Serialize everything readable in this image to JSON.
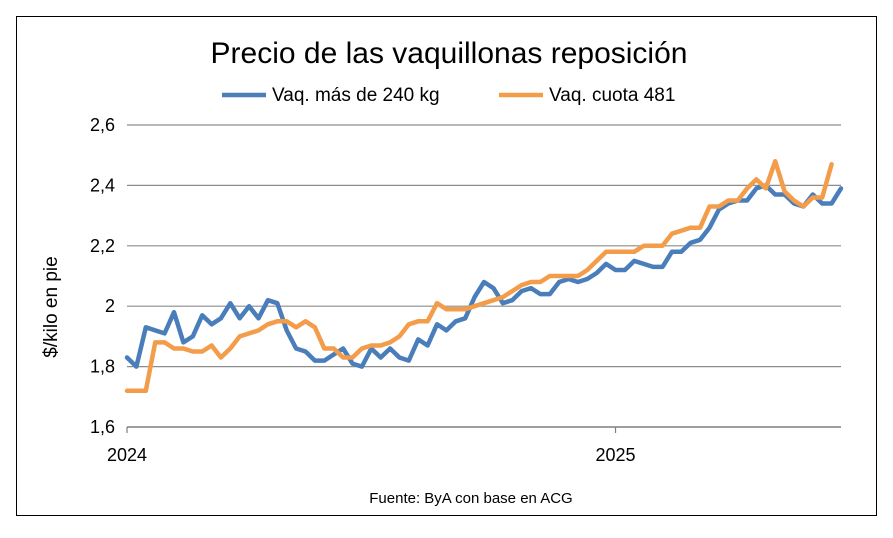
{
  "chart_data": {
    "type": "line",
    "title": "Precio de las vaquillonas reposición",
    "ylabel": "$/kilo en pie",
    "xlabel": "",
    "source": "Fuente: ByA con base en ACG",
    "ylim": [
      1.6,
      2.6
    ],
    "y_ticks": [
      {
        "value": 1.6,
        "label": "1,6"
      },
      {
        "value": 1.8,
        "label": "1,8"
      },
      {
        "value": 2.0,
        "label": "2"
      },
      {
        "value": 2.2,
        "label": "2,2"
      },
      {
        "value": 2.4,
        "label": "2,4"
      },
      {
        "value": 2.6,
        "label": "2,6"
      }
    ],
    "grid": true,
    "legend_position": "top",
    "x_tick_labels": [
      {
        "index": 0,
        "label": "2024"
      },
      {
        "index": 52,
        "label": "2025"
      }
    ],
    "series": [
      {
        "name": "Vaq. más de 240 kg",
        "color": "#4a7ebb",
        "values": [
          1.83,
          1.8,
          1.93,
          1.92,
          1.91,
          1.98,
          1.88,
          1.9,
          1.97,
          1.94,
          1.96,
          2.01,
          1.96,
          2.0,
          1.96,
          2.02,
          2.01,
          1.92,
          1.86,
          1.85,
          1.82,
          1.82,
          1.84,
          1.86,
          1.81,
          1.8,
          1.86,
          1.83,
          1.86,
          1.83,
          1.82,
          1.89,
          1.87,
          1.94,
          1.92,
          1.95,
          1.96,
          2.03,
          2.08,
          2.06,
          2.01,
          2.02,
          2.05,
          2.06,
          2.04,
          2.04,
          2.08,
          2.09,
          2.08,
          2.09,
          2.11,
          2.14,
          2.12,
          2.12,
          2.15,
          2.14,
          2.13,
          2.13,
          2.18,
          2.18,
          2.21,
          2.22,
          2.26,
          2.32,
          2.34,
          2.35,
          2.35,
          2.39,
          2.4,
          2.37,
          2.37,
          2.34,
          2.33,
          2.37,
          2.34,
          2.34,
          2.39
        ]
      },
      {
        "name": "Vaq. cuota 481",
        "color": "#f39c4a",
        "values": [
          1.72,
          1.72,
          1.72,
          1.88,
          1.88,
          1.86,
          1.86,
          1.85,
          1.85,
          1.87,
          1.83,
          1.86,
          1.9,
          1.91,
          1.92,
          1.94,
          1.95,
          1.95,
          1.93,
          1.95,
          1.93,
          1.86,
          1.86,
          1.83,
          1.83,
          1.86,
          1.87,
          1.87,
          1.88,
          1.9,
          1.94,
          1.95,
          1.95,
          2.01,
          1.99,
          1.99,
          1.99,
          2.0,
          2.01,
          2.02,
          2.03,
          2.05,
          2.07,
          2.08,
          2.08,
          2.1,
          2.1,
          2.1,
          2.1,
          2.12,
          2.15,
          2.18,
          2.18,
          2.18,
          2.18,
          2.2,
          2.2,
          2.2,
          2.24,
          2.25,
          2.26,
          2.26,
          2.33,
          2.33,
          2.35,
          2.35,
          2.39,
          2.42,
          2.39,
          2.48,
          2.38,
          2.35,
          2.33,
          2.36,
          2.36,
          2.47
        ]
      }
    ]
  }
}
